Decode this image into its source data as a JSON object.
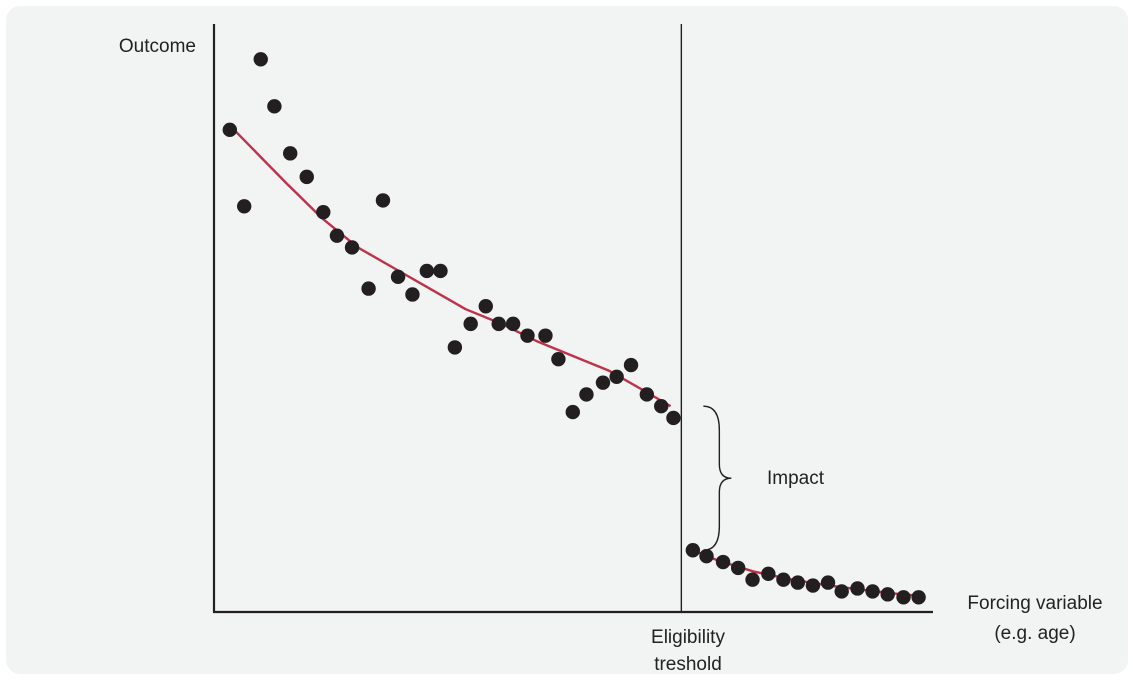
{
  "chart_data": {
    "type": "scatter",
    "title": "",
    "ylabel": "Outcome",
    "xlabel_lines": [
      "Forcing variable",
      "(e.g. age)"
    ],
    "threshold_label_lines": [
      "Eligibility",
      "treshold"
    ],
    "impact_label": "Impact",
    "xlim": [
      0,
      100
    ],
    "ylim": [
      0,
      100
    ],
    "threshold_x": 65,
    "show_ticks": false,
    "grid": false,
    "colors": {
      "points": "#231f20",
      "fit_line": "#c0314a",
      "axes": "#231f20"
    },
    "series": [
      {
        "segment": "below-threshold",
        "x": [
          2.2,
          4.2,
          6.5,
          8.4,
          10.6,
          12.9,
          15.2,
          17.1,
          19.2,
          21.5,
          23.5,
          25.6,
          27.6,
          29.6,
          31.5,
          33.5,
          35.7,
          37.8,
          39.6,
          41.6,
          43.6,
          46.1,
          47.9,
          49.9,
          51.8,
          54.1,
          56.0,
          58.0,
          60.2,
          62.2,
          63.9
        ],
        "y": [
          82,
          69,
          94,
          86,
          78,
          74,
          68,
          64,
          62,
          55,
          70,
          57,
          54,
          58,
          58,
          45,
          49,
          52,
          49,
          49,
          47,
          47,
          43,
          34,
          37,
          39,
          40,
          42,
          37,
          35,
          33
        ]
      },
      {
        "segment": "above-threshold",
        "x": [
          66.6,
          68.5,
          70.8,
          72.9,
          74.9,
          77.1,
          79.2,
          81.2,
          83.3,
          85.4,
          87.3,
          89.5,
          91.6,
          93.7,
          95.9,
          98.0
        ],
        "y": [
          10.5,
          9.5,
          8.5,
          7.5,
          5.5,
          6.5,
          5.5,
          5,
          4.5,
          5,
          3.5,
          4,
          3.5,
          3,
          2.5,
          2.5
        ]
      }
    ],
    "fit_lines": [
      {
        "segment": "below-threshold",
        "x": [
          2,
          6,
          10,
          15,
          20,
          25,
          30,
          35,
          40,
          45,
          50,
          55,
          60,
          63.5
        ],
        "y": [
          83,
          78,
          73,
          67,
          62,
          58.5,
          55,
          51.5,
          49,
          46,
          43.5,
          41,
          37.5,
          35
        ]
      },
      {
        "segment": "above-threshold",
        "x": [
          66.6,
          70,
          75,
          80,
          85,
          90,
          95,
          98.5
        ],
        "y": [
          10.5,
          8.8,
          6.9,
          5.6,
          4.6,
          3.8,
          3.1,
          2.7
        ]
      }
    ]
  }
}
